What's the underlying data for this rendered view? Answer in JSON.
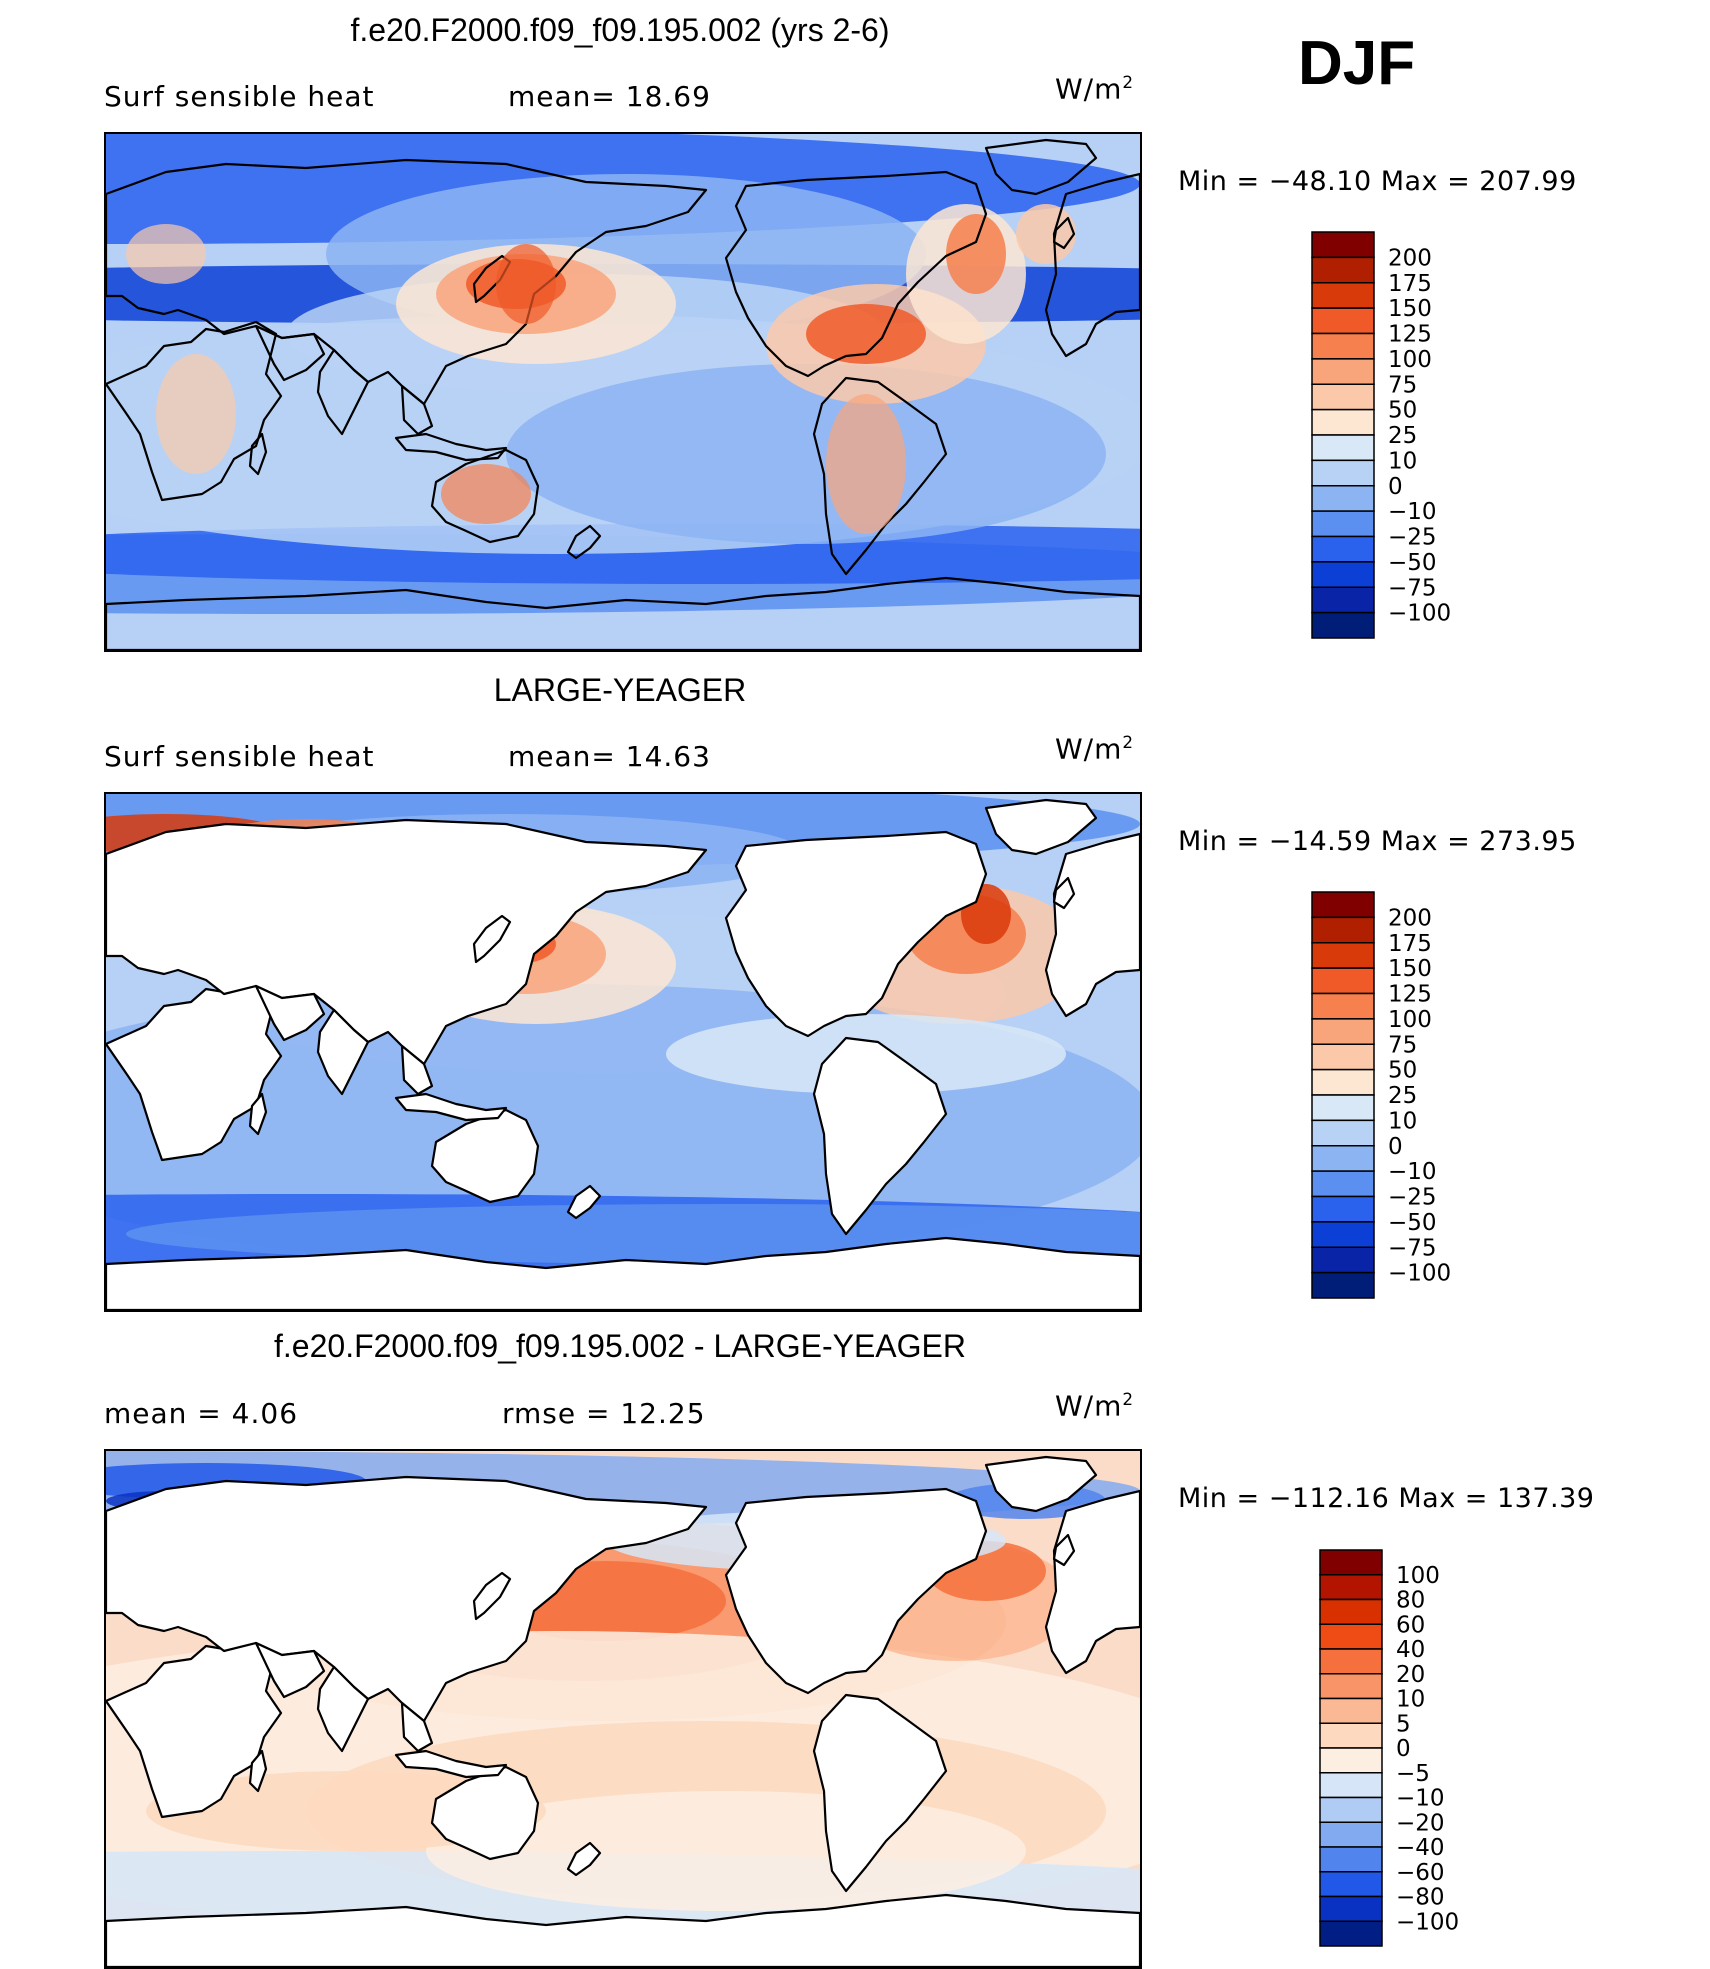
{
  "season": "DJF",
  "panels": [
    {
      "title": "f.e20.F2000.f09_f09.195.002 (yrs 2-6)",
      "left_label": "Surf  sensible  heat",
      "mid_label": "mean=   18.69",
      "units": "W/m",
      "units_sup": "2",
      "stats": "Min  =  −48.10  Max  =  207.99",
      "land_filled": true,
      "colorbar_levels": [
        "200",
        "175",
        "150",
        "125",
        "100",
        "75",
        "50",
        "25",
        "10",
        "0",
        "−10",
        "−25",
        "−50",
        "−75",
        "−100"
      ],
      "colorbar_colors": [
        "#800000",
        "#b02000",
        "#d93a0a",
        "#f05a28",
        "#f6804e",
        "#f9a57c",
        "#fbc9aa",
        "#fde6d2",
        "#d8e8f7",
        "#b8d2f6",
        "#8cb4f3",
        "#5c90f0",
        "#2a62ee",
        "#0b3fd6",
        "#0a24a8",
        "#001e78"
      ],
      "ocean_fill": "#b6d0f6"
    },
    {
      "title": "LARGE-YEAGER",
      "left_label": "Surf  sensible  heat",
      "mid_label": "mean=   14.63",
      "units": "W/m",
      "units_sup": "2",
      "stats": "Min  =  −14.59  Max  =  273.95",
      "land_filled": false,
      "colorbar_levels": [
        "200",
        "175",
        "150",
        "125",
        "100",
        "75",
        "50",
        "25",
        "10",
        "0",
        "−10",
        "−25",
        "−50",
        "−75",
        "−100"
      ],
      "colorbar_colors": [
        "#800000",
        "#b02000",
        "#d93a0a",
        "#f05a28",
        "#f6804e",
        "#f9a57c",
        "#fbc9aa",
        "#fde6d2",
        "#d8e8f7",
        "#b8d2f6",
        "#8cb4f3",
        "#5c90f0",
        "#2a62ee",
        "#0b3fd6",
        "#0a24a8",
        "#001e78"
      ],
      "ocean_fill": "#b6d0f6"
    },
    {
      "title": "f.e20.F2000.f09_f09.195.002 - LARGE-YEAGER",
      "left_label": "mean  =     4.06",
      "mid_label": "rmse  =    12.25",
      "units": "W/m",
      "units_sup": "2",
      "stats": "Min  =  −112.16  Max  =  137.39",
      "land_filled": false,
      "colorbar_levels": [
        "100",
        "80",
        "60",
        "40",
        "20",
        "10",
        "5",
        "0",
        "−5",
        "−10",
        "−20",
        "−40",
        "−60",
        "−80",
        "−100"
      ],
      "colorbar_colors": [
        "#800000",
        "#b21400",
        "#d93000",
        "#ee4c14",
        "#f5703c",
        "#f89468",
        "#fbb894",
        "#fdd9c0",
        "#fdeee2",
        "#d6e6f8",
        "#b0ccf5",
        "#82aaf1",
        "#5284ee",
        "#2258e8",
        "#0a32c2",
        "#001e84"
      ],
      "ocean_fill": "#fbdcc8"
    }
  ],
  "chart_data": [
    {
      "type": "heatmap",
      "title": "f.e20.F2000.f09_f09.195.002 (yrs 2-6)",
      "variable": "Surf sensible heat",
      "units": "W/m2",
      "season": "DJF",
      "mean": 18.69,
      "min": -48.1,
      "max": 207.99,
      "contour_levels": [
        -100,
        -75,
        -50,
        -25,
        -10,
        0,
        10,
        25,
        50,
        75,
        100,
        125,
        150,
        175,
        200
      ]
    },
    {
      "type": "heatmap",
      "title": "LARGE-YEAGER",
      "variable": "Surf sensible heat",
      "units": "W/m2",
      "season": "DJF",
      "mean": 14.63,
      "min": -14.59,
      "max": 273.95,
      "contour_levels": [
        -100,
        -75,
        -50,
        -25,
        -10,
        0,
        10,
        25,
        50,
        75,
        100,
        125,
        150,
        175,
        200
      ]
    },
    {
      "type": "heatmap",
      "title": "f.e20.F2000.f09_f09.195.002 - LARGE-YEAGER",
      "units": "W/m2",
      "season": "DJF",
      "mean": 4.06,
      "rmse": 12.25,
      "min": -112.16,
      "max": 137.39,
      "contour_levels": [
        -100,
        -80,
        -60,
        -40,
        -20,
        -10,
        -5,
        0,
        5,
        10,
        20,
        40,
        60,
        80,
        100
      ]
    }
  ]
}
